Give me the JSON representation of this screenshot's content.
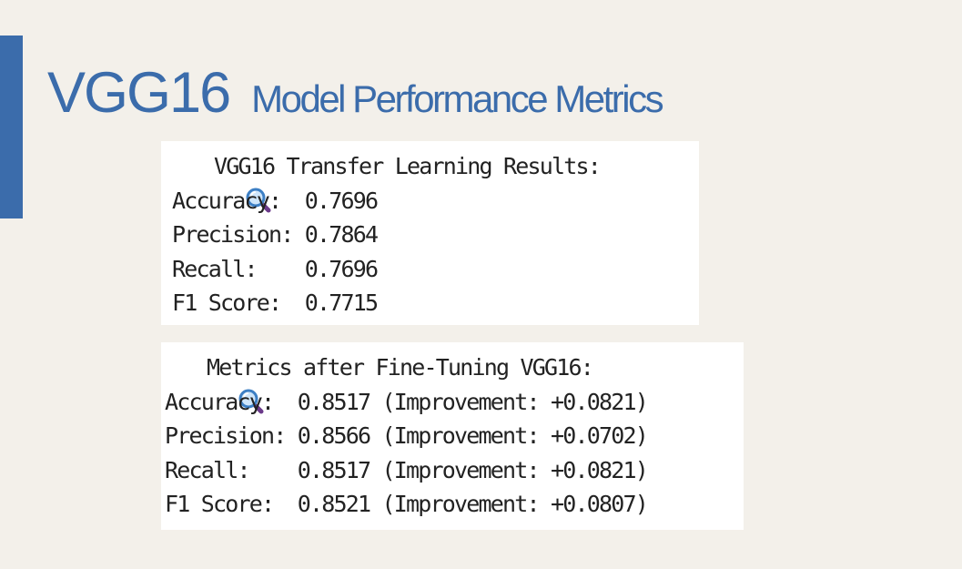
{
  "slide": {
    "title_main": "VGG16",
    "title_sub": "Model Performance Metrics",
    "accent_color": "#3b6cab"
  },
  "panel1": {
    "icon": "magnifying-glass-icon",
    "header": "VGG16 Transfer Learning Results:",
    "lines": [
      "Accuracy:  0.7696",
      "Precision: 0.7864",
      "Recall:    0.7696",
      "F1 Score:  0.7715"
    ]
  },
  "panel2": {
    "icon": "magnifying-glass-icon",
    "header": "Metrics after Fine-Tuning VGG16:",
    "lines": [
      "Accuracy:  0.8517 (Improvement: +0.0821)",
      "Precision: 0.8566 (Improvement: +0.0702)",
      "Recall:    0.8517 (Improvement: +0.0821)",
      "F1 Score:  0.8521 (Improvement: +0.0807)"
    ]
  }
}
